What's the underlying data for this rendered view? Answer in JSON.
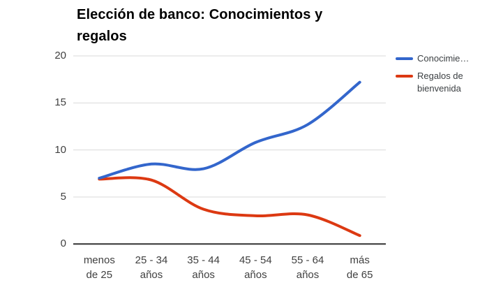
{
  "title": "Elección de banco: Conocimientos y regalos",
  "colors": {
    "series_conocimientos": "#3366cc",
    "series_regalos": "#dc3912",
    "gridline": "#d9d9d9",
    "axis_baseline": "#333333",
    "tick_text": "#404040",
    "legend_text": "#3c4043",
    "title_text": "#000000",
    "background": "#ffffff"
  },
  "legend": {
    "position": "right",
    "items": [
      {
        "label": "Conocimie…",
        "color": "#3366cc"
      },
      {
        "label": "Regalos de bienvenida",
        "color": "#dc3912"
      }
    ]
  },
  "chart_data": {
    "type": "line",
    "smooth": true,
    "title": "Elección de banco: Conocimientos y regalos",
    "categories": [
      "menos de 25",
      "25 - 34 años",
      "35 - 44 años",
      "45 - 54 años",
      "55 - 64 años",
      "más de 65"
    ],
    "category_label_lines": [
      [
        "menos",
        "de 25"
      ],
      [
        "25 - 34",
        "años"
      ],
      [
        "35 - 44",
        "años"
      ],
      [
        "45 - 54",
        "años"
      ],
      [
        "55 - 64",
        "años"
      ],
      [
        "más",
        "de 65"
      ]
    ],
    "series": [
      {
        "name": "Conocimie…",
        "color": "#3366cc",
        "values": [
          7,
          8.5,
          8,
          10.8,
          12.7,
          17.2
        ]
      },
      {
        "name": "Regalos de bienvenida",
        "color": "#dc3912",
        "values": [
          6.9,
          6.8,
          3.7,
          3,
          3.1,
          0.9
        ]
      }
    ],
    "xlabel": "",
    "ylabel": "",
    "ylim": [
      0,
      20
    ],
    "yticks": [
      0,
      5,
      10,
      15,
      20
    ],
    "grid": true,
    "legend_position": "right"
  }
}
